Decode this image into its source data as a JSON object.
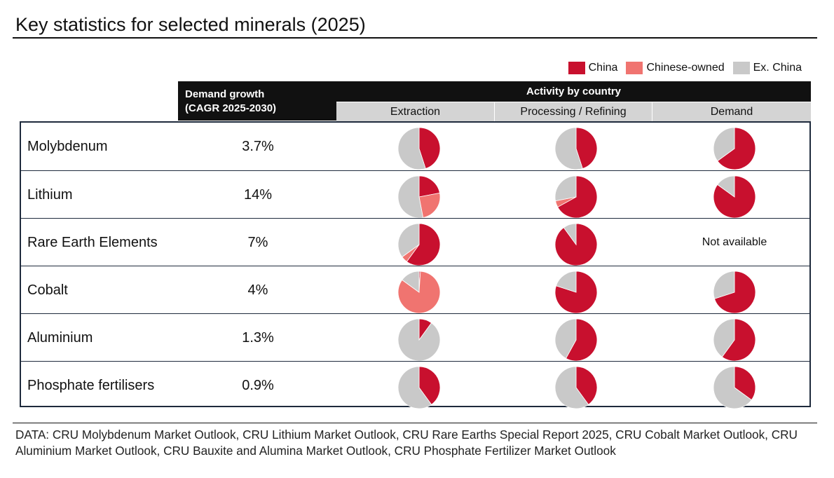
{
  "title": "Key statistics for selected minerals (2025)",
  "colors": {
    "china": "#c8102e",
    "chinese_owned": "#f07470",
    "ex_china": "#c9c9c9"
  },
  "legend": [
    {
      "label": "China",
      "color": "#c8102e"
    },
    {
      "label": "Chinese-owned",
      "color": "#f07470"
    },
    {
      "label": "Ex. China",
      "color": "#c9c9c9"
    }
  ],
  "header": {
    "demand_growth_line1": "Demand growth",
    "demand_growth_line2": "(CAGR 2025-2030)",
    "activity": "Activity by country",
    "columns": [
      "Extraction",
      "Processing / Refining",
      "Demand"
    ]
  },
  "chart_data": {
    "type": "pie",
    "title": "Key statistics for selected minerals (2025)",
    "series_order": [
      "China",
      "Chinese-owned",
      "Ex. China"
    ],
    "columns": [
      "Extraction",
      "Processing / Refining",
      "Demand"
    ],
    "rows": [
      {
        "mineral": "Molybdenum",
        "growth": "3.7%",
        "pies": [
          {
            "china": 45,
            "chinese_owned": 0,
            "ex_china": 55
          },
          {
            "china": 45,
            "chinese_owned": 0,
            "ex_china": 55
          },
          {
            "china": 65,
            "chinese_owned": 0,
            "ex_china": 35
          }
        ]
      },
      {
        "mineral": "Lithium",
        "growth": "14%",
        "pies": [
          {
            "china": 22,
            "chinese_owned": 25,
            "ex_china": 53
          },
          {
            "china": 67,
            "chinese_owned": 5,
            "ex_china": 28
          },
          {
            "china": 85,
            "chinese_owned": 0,
            "ex_china": 15
          }
        ]
      },
      {
        "mineral": "Rare Earth Elements",
        "growth": "7%",
        "pies": [
          {
            "china": 60,
            "chinese_owned": 5,
            "ex_china": 35
          },
          {
            "china": 90,
            "chinese_owned": 0,
            "ex_china": 10
          },
          null
        ]
      },
      {
        "mineral": "Cobalt",
        "growth": "4%",
        "pies": [
          {
            "china": 1,
            "chinese_owned": 84,
            "ex_china": 15
          },
          {
            "china": 80,
            "chinese_owned": 0,
            "ex_china": 20
          },
          {
            "china": 70,
            "chinese_owned": 0,
            "ex_china": 30
          }
        ]
      },
      {
        "mineral": "Aluminium",
        "growth": "1.3%",
        "pies": [
          {
            "china": 10,
            "chinese_owned": 0,
            "ex_china": 90
          },
          {
            "china": 58,
            "chinese_owned": 0,
            "ex_china": 42
          },
          {
            "china": 60,
            "chinese_owned": 0,
            "ex_china": 40
          }
        ]
      },
      {
        "mineral": "Phosphate fertilisers",
        "growth": "0.9%",
        "pies": [
          {
            "china": 40,
            "chinese_owned": 0,
            "ex_china": 60
          },
          {
            "china": 40,
            "chinese_owned": 0,
            "ex_china": 60
          },
          {
            "china": 35,
            "chinese_owned": 0,
            "ex_china": 65
          }
        ]
      }
    ],
    "not_available": "Not available"
  },
  "source": "DATA: CRU Molybdenum Market Outlook, CRU Lithium Market Outlook, CRU Rare Earths Special Report 2025, CRU Cobalt Market Outlook, CRU Aluminium Market Outlook, CRU Bauxite and Alumina Market Outlook, CRU Phosphate Fertilizer Market Outlook"
}
